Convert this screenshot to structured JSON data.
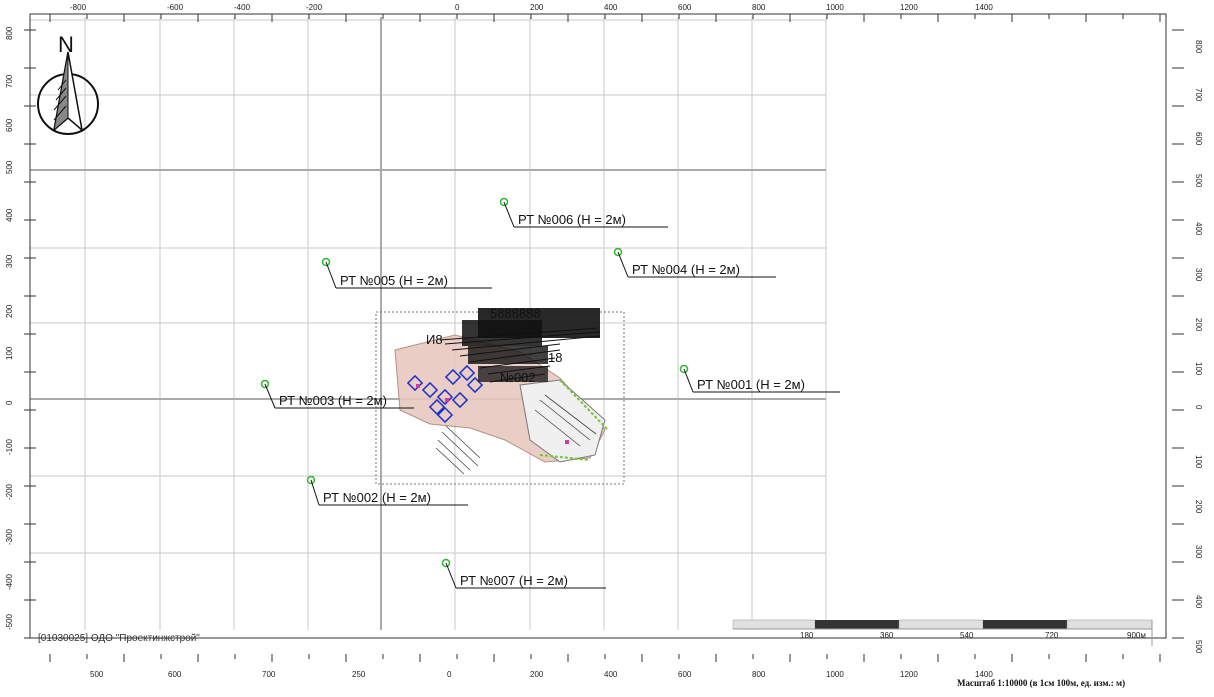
{
  "top_axis_labels": [
    "-800",
    "-600",
    "-400",
    "-200",
    "0",
    "200",
    "400",
    "600",
    "800",
    "1000",
    "1200",
    "1400"
  ],
  "bottom_axis_labels": [
    "500",
    "600",
    "700",
    "250",
    "0",
    "200",
    "400",
    "600",
    "800",
    "1000",
    "1200",
    "1400"
  ],
  "left_axis_labels": [
    "800",
    "700",
    "600",
    "500",
    "400",
    "300",
    "200",
    "100",
    "0",
    "-100",
    "-200",
    "-300",
    "-400",
    "-500"
  ],
  "right_axis_labels": [
    "800",
    "700",
    "600",
    "500",
    "400",
    "300",
    "200",
    "100",
    "0",
    "100",
    "200",
    "300",
    "400",
    "500"
  ],
  "compass": {
    "letter": "N"
  },
  "points": [
    {
      "id": "p006",
      "label": "РТ №006 (Н = 2м)"
    },
    {
      "id": "p004",
      "label": "РТ №004 (Н = 2м)"
    },
    {
      "id": "p005",
      "label": "РТ №005 (Н = 2м)"
    },
    {
      "id": "p001",
      "label": "РТ №001 (Н = 2м)"
    },
    {
      "id": "p003",
      "label": "РТ №003 (Н = 2м)"
    },
    {
      "id": "p002",
      "label": "РТ №002 (Н = 2м)"
    },
    {
      "id": "p007",
      "label": "РТ №007 (Н = 2м)"
    }
  ],
  "site_clutter": [
    "И8",
    "18",
    "№002",
    "5888888"
  ],
  "organization": "[01030025] ОДО \"Проектинжстрой\"",
  "scale_bar": {
    "labels": [
      "180",
      "360",
      "540",
      "720",
      "900м"
    ],
    "caption": "Масштаб 1:10000 (в 1см 100м, ед. изм.: м)"
  },
  "colors": {
    "grid": "#c8c8c8",
    "axis": "#aaaaaa",
    "point_marker": "#2fb52f",
    "site_blue": "#1a2fcc",
    "site_pink": "#d98a8a",
    "site_green": "#79c23c"
  }
}
